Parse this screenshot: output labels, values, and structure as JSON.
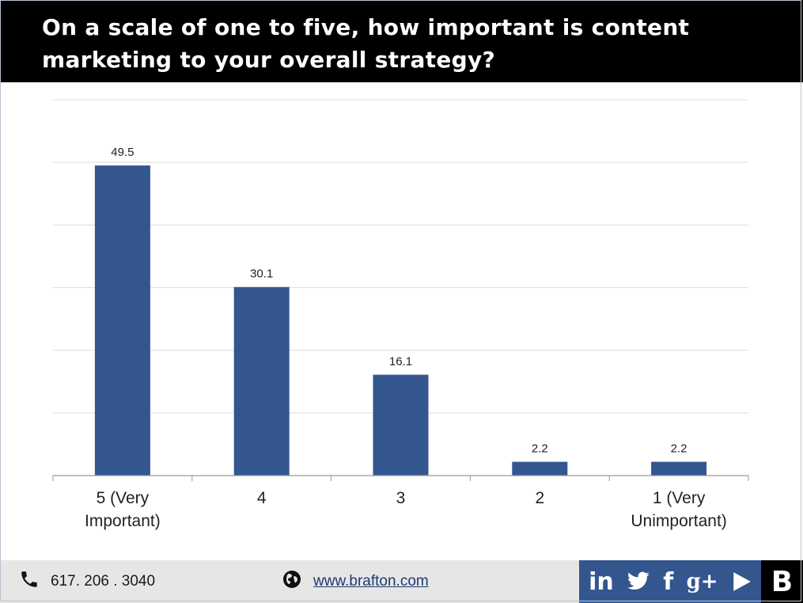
{
  "header": {
    "title": "On a scale of one to five, how important is content marketing to your overall strategy?"
  },
  "chart_data": {
    "type": "bar",
    "title": "On a scale of one to five, how important is content marketing to your overall strategy?",
    "categories": [
      "5 (Very Important)",
      "4",
      "3",
      "2",
      "1 (Very Unimportant)"
    ],
    "category_lines": [
      [
        "5 (Very",
        "Important)"
      ],
      [
        "4"
      ],
      [
        "3"
      ],
      [
        "2"
      ],
      [
        "1 (Very",
        "Unimportant)"
      ]
    ],
    "values": [
      49.5,
      30.1,
      16.1,
      2.2,
      2.2
    ],
    "data_labels": [
      "49.5",
      "30.1",
      "16.1",
      "2.2",
      "2.2"
    ],
    "xlabel": "",
    "ylabel": "",
    "ylim": [
      0,
      60
    ],
    "grid": true,
    "y_tick_labels_visible": false,
    "legend": "none",
    "bar_color": "#34568e"
  },
  "footer": {
    "phone": "617. 206 . 3040",
    "website": "www.brafton.com",
    "social": {
      "linkedin": "in",
      "twitter": "twitter-icon",
      "facebook": "f",
      "googleplus": "g+",
      "youtube": "play-icon"
    },
    "brand_letter": "B"
  },
  "colors": {
    "header_bg": "#000000",
    "bar": "#34568e",
    "footer_bg": "#e6e6e6",
    "social_bg": "#34568e",
    "link": "#1f3a6e"
  }
}
